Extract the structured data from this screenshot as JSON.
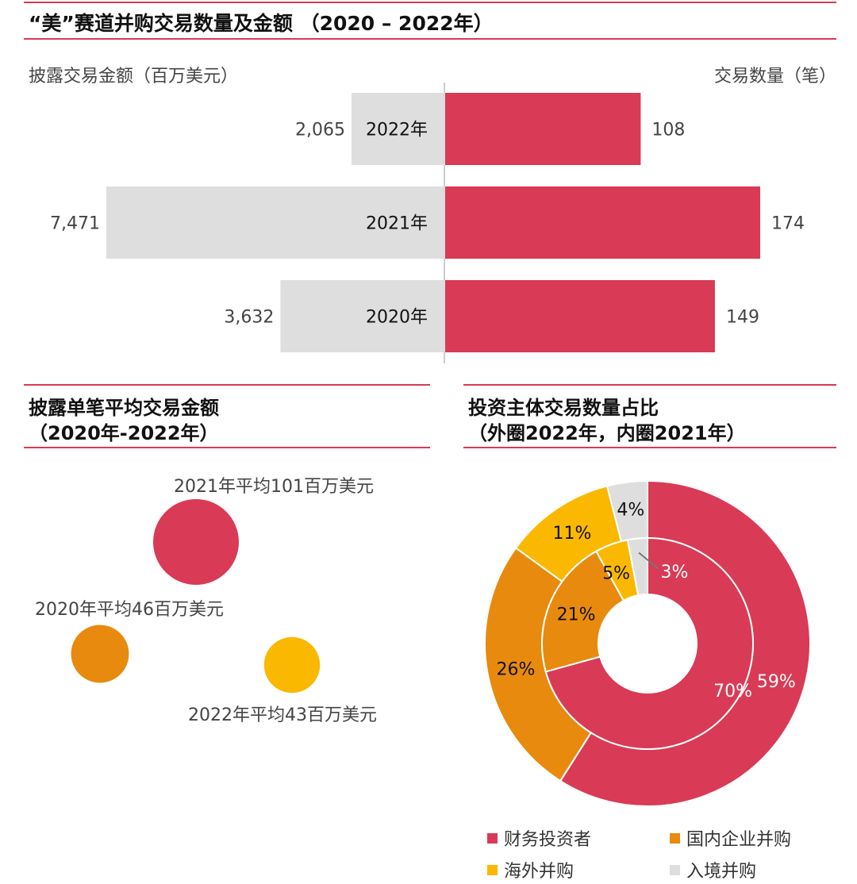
{
  "colors": {
    "accent": "#d93a55",
    "grey": "#dedede",
    "orange": "#e88a0e",
    "yellow": "#fbb800"
  },
  "chart_data": [
    {
      "type": "bar",
      "title": "“美”赛道并购交易数量及金额 （2020 – 2022年）",
      "categories": [
        "2022年",
        "2021年",
        "2020年"
      ],
      "left_label": "披露交易金额（百万美元）",
      "right_label": "交易数量（笔）",
      "series": [
        {
          "values": [
            2065,
            7471,
            3632
          ],
          "labels": [
            "2,065",
            "7,471",
            "3,632"
          ],
          "color": "#dedede"
        },
        {
          "values": [
            108,
            174,
            149
          ],
          "labels": [
            "108",
            "174",
            "149"
          ],
          "color": "#d93a55"
        }
      ]
    },
    {
      "type": "scatter",
      "title": "披露单笔平均交易金额",
      "subtitle": "（2020年-2022年）",
      "points": [
        {
          "label": "2021年平均101百万美元",
          "value": 101,
          "color": "#d93a55"
        },
        {
          "label": "2020年平均46百万美元",
          "value": 46,
          "color": "#e88a0e"
        },
        {
          "label": "2022年平均43百万美元",
          "value": 43,
          "color": "#fbb800"
        }
      ]
    },
    {
      "type": "pie",
      "title": "投资主体交易数量占比",
      "subtitle": "（外圈2022年，内圈2021年）",
      "categories": [
        "财务投资者",
        "国内企业并购",
        "海外并购",
        "入境并购"
      ],
      "colors": [
        "#d93a55",
        "#e88a0e",
        "#fbb800",
        "#dedede"
      ],
      "series": [
        {
          "values": [
            59,
            26,
            11,
            4
          ],
          "labels": [
            "59%",
            "26%",
            "11%",
            "4%"
          ]
        },
        {
          "values": [
            70,
            21,
            5,
            3
          ],
          "labels": [
            "70%",
            "21%",
            "5%",
            "3%"
          ]
        }
      ]
    }
  ]
}
